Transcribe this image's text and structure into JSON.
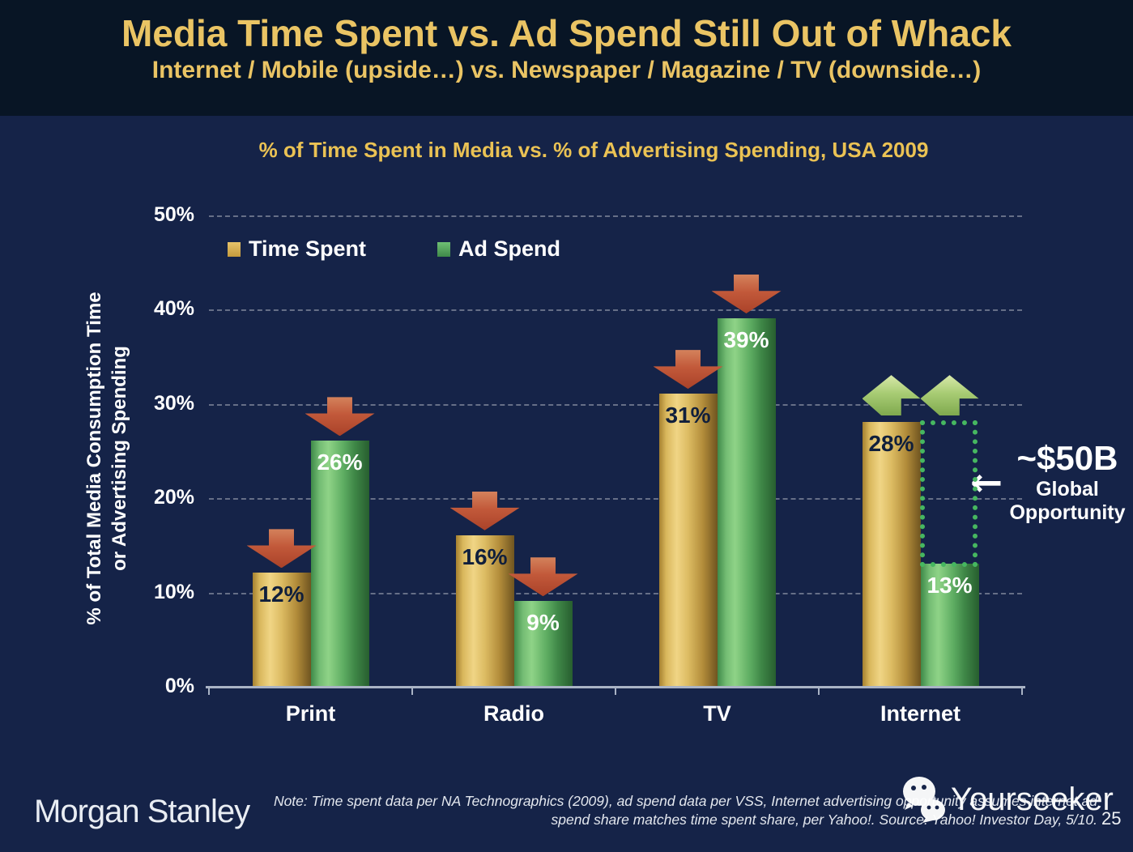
{
  "slide": {
    "title": "Media Time Spent vs. Ad Spend Still Out of Whack",
    "subtitle": "Internet / Mobile (upside…) vs. Newspaper / Magazine / TV (downside…)",
    "brand": "Morgan Stanley",
    "note_line1": "Note: Time spent data per NA Technographics (2009), ad spend data per VSS, Internet advertising opportunity assumes internet ad",
    "note_line2": "spend share matches time spent share, per Yahoo!. Source: Yahoo! Investor Day, 5/10.",
    "page_number": "25",
    "watermark": "Yourseeker"
  },
  "chart_data": {
    "type": "bar",
    "title": "% of Time Spent in Media vs. % of Advertising Spending, USA 2009",
    "categories": [
      "Print",
      "Radio",
      "TV",
      "Internet"
    ],
    "series": [
      {
        "name": "Time Spent",
        "color": "gold",
        "values": [
          12,
          16,
          31,
          28
        ],
        "value_labels": [
          "12%",
          "16%",
          "31%",
          "28%"
        ],
        "label_color": "#101f3c",
        "trend_arrows": [
          "down",
          "down",
          "down",
          "up"
        ]
      },
      {
        "name": "Ad Spend",
        "color": "green",
        "values": [
          26,
          9,
          39,
          13
        ],
        "value_labels": [
          "26%",
          "9%",
          "39%",
          "13%"
        ],
        "label_color": "#ffffff",
        "trend_arrows": [
          "down",
          "down",
          "down",
          "up"
        ]
      }
    ],
    "ylabel_line1": "% of Total Media Consumption Time",
    "ylabel_line2": "or Advertising Spending",
    "ylim": [
      0,
      50
    ],
    "yticks": [
      {
        "value": 0,
        "label": "0%"
      },
      {
        "value": 10,
        "label": "10%"
      },
      {
        "value": 20,
        "label": "20%"
      },
      {
        "value": 30,
        "label": "30%"
      },
      {
        "value": 40,
        "label": "40%"
      },
      {
        "value": 50,
        "label": "50%"
      }
    ],
    "grid": "horizontal dashed lines at 10%-50%",
    "legend_position": "top-left inside plot",
    "annotation": {
      "value": "~$50B",
      "label_line1": "Global",
      "label_line2": "Opportunity",
      "arrow": "←",
      "box": {
        "category": "Internet",
        "from_value": 28,
        "to_value": 13
      }
    },
    "colors": {
      "background": "#152348",
      "header_background": "#081525",
      "title_gold": "#eac464",
      "bar_gold_light": "#f0d585",
      "bar_gold_dark": "#6f5420",
      "bar_green_light": "#8fd387",
      "bar_green_dark": "#275e2f",
      "arrow_down_red": "#c2593a",
      "arrow_up_green": "#a8cc74",
      "dotted_box_green": "#46b760",
      "axis_line": "#a9b3c5",
      "text_white": "#ffffff"
    }
  }
}
